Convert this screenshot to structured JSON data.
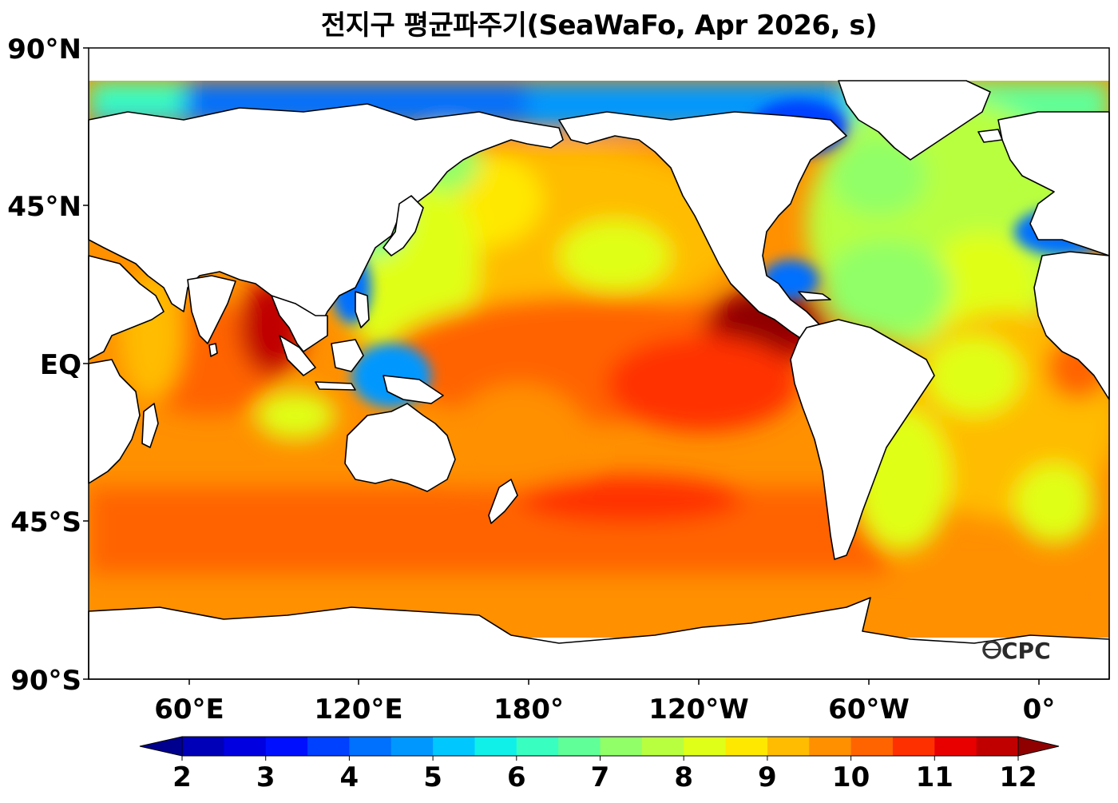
{
  "title": "전지구 평균파주기(SeaWaFo, Apr 2026, s)",
  "watermark": "OCPC",
  "map": {
    "projection": "equirectangular",
    "central_longitude": "150°W (approx., Pacific-centred)",
    "lat_range": [
      -90,
      90
    ],
    "lat_ticks": [
      "90°N",
      "45°N",
      "EQ",
      "45°S",
      "90°S"
    ],
    "lon_ticks": [
      "60°E",
      "120°E",
      "180°",
      "120°W",
      "60°W",
      "0°"
    ],
    "land_color": "#ffffff",
    "coastline_color": "#000000",
    "ocean_field": "mean wave period (s), filled contours"
  },
  "colorbar": {
    "orientation": "horizontal",
    "extend": "both",
    "labels": [
      "2",
      "3",
      "4",
      "5",
      "6",
      "7",
      "8",
      "9",
      "10",
      "11",
      "12"
    ],
    "colors": [
      "#00008f",
      "#0000b8",
      "#0000e0",
      "#0010ff",
      "#0040ff",
      "#0070ff",
      "#0098ff",
      "#00c8ff",
      "#10f0e8",
      "#38ffc0",
      "#60ff98",
      "#90ff68",
      "#b8ff40",
      "#e0ff18",
      "#ffe800",
      "#ffbc00",
      "#ff9000",
      "#ff6400",
      "#ff3000",
      "#e80000",
      "#c00000",
      "#900000"
    ]
  }
}
